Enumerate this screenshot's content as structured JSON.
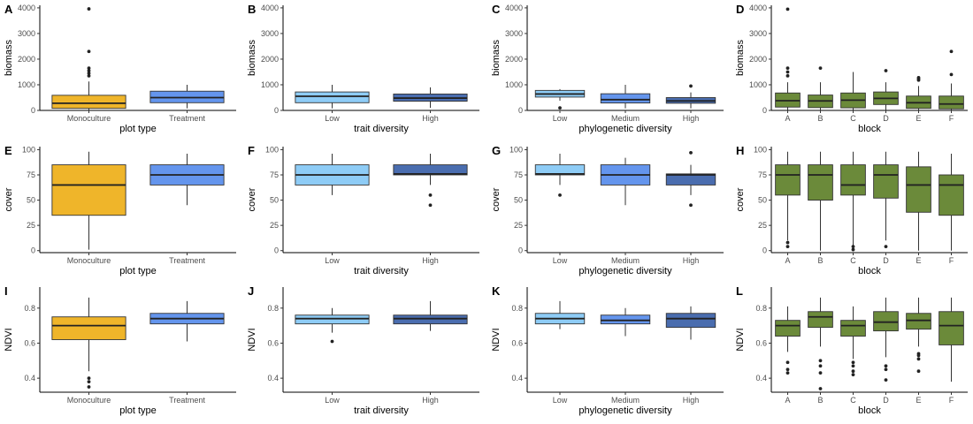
{
  "colors": {
    "monoculture": "#EFB52A",
    "treatment": "#6495ED",
    "low": "#8ECCF6",
    "medium": "#6495ED",
    "high": "#4A6DAF",
    "block": "#6B8A3A",
    "outlier": "#222222",
    "axis": "#000000"
  },
  "chart_data": [
    {
      "panel": "A",
      "type": "box",
      "xlabel": "plot type",
      "ylabel": "biomass",
      "ylim": [
        0,
        4100
      ],
      "yticks": [
        0,
        1000,
        2000,
        3000,
        4000
      ],
      "categories": [
        "Monoculture",
        "Treatment"
      ],
      "color_keys": [
        "monoculture",
        "treatment"
      ],
      "boxes": [
        {
          "lower": 0,
          "q1": 80,
          "median": 280,
          "q3": 590,
          "upper": 1130,
          "outliers": [
            1350,
            1450,
            1550,
            1650,
            2300,
            3960
          ]
        },
        {
          "lower": 80,
          "q1": 300,
          "median": 500,
          "q3": 750,
          "upper": 1000,
          "outliers": []
        }
      ]
    },
    {
      "panel": "B",
      "type": "box",
      "xlabel": "trait diversity",
      "ylabel": "biomass",
      "ylim": [
        0,
        4100
      ],
      "yticks": [
        0,
        1000,
        2000,
        3000,
        4000
      ],
      "categories": [
        "Low",
        "High"
      ],
      "color_keys": [
        "low",
        "high"
      ],
      "boxes": [
        {
          "lower": 80,
          "q1": 300,
          "median": 550,
          "q3": 720,
          "upper": 1000,
          "outliers": []
        },
        {
          "lower": 100,
          "q1": 360,
          "median": 480,
          "q3": 640,
          "upper": 900,
          "outliers": []
        }
      ]
    },
    {
      "panel": "C",
      "type": "box",
      "xlabel": "phylogenetic diversity",
      "ylabel": "biomass",
      "ylim": [
        0,
        4100
      ],
      "yticks": [
        0,
        1000,
        2000,
        3000,
        4000
      ],
      "categories": [
        "Low",
        "Medium",
        "High"
      ],
      "color_keys": [
        "low",
        "medium",
        "high"
      ],
      "boxes": [
        {
          "lower": 380,
          "q1": 520,
          "median": 640,
          "q3": 780,
          "upper": 830,
          "outliers": [
            100
          ]
        },
        {
          "lower": 80,
          "q1": 290,
          "median": 420,
          "q3": 650,
          "upper": 1000,
          "outliers": []
        },
        {
          "lower": 80,
          "q1": 280,
          "median": 370,
          "q3": 500,
          "upper": 700,
          "outliers": [
            950
          ]
        }
      ]
    },
    {
      "panel": "D",
      "type": "box",
      "xlabel": "block",
      "ylabel": "biomass",
      "ylim": [
        0,
        4100
      ],
      "yticks": [
        0,
        1000,
        2000,
        3000,
        4000
      ],
      "categories": [
        "A",
        "B",
        "C",
        "D",
        "E",
        "F"
      ],
      "color_keys": [
        "block",
        "block",
        "block",
        "block",
        "block",
        "block"
      ],
      "boxes": [
        {
          "lower": 0,
          "q1": 130,
          "median": 380,
          "q3": 680,
          "upper": 1100,
          "outliers": [
            1350,
            1500,
            1650,
            3950
          ]
        },
        {
          "lower": 0,
          "q1": 110,
          "median": 370,
          "q3": 600,
          "upper": 1100,
          "outliers": [
            1650
          ]
        },
        {
          "lower": 0,
          "q1": 100,
          "median": 400,
          "q3": 680,
          "upper": 1500,
          "outliers": []
        },
        {
          "lower": 20,
          "q1": 230,
          "median": 470,
          "q3": 720,
          "upper": 1100,
          "outliers": [
            1550
          ]
        },
        {
          "lower": 0,
          "q1": 80,
          "median": 300,
          "q3": 560,
          "upper": 950,
          "outliers": [
            1180,
            1230,
            1280
          ]
        },
        {
          "lower": 0,
          "q1": 60,
          "median": 250,
          "q3": 560,
          "upper": 1050,
          "outliers": [
            1400,
            2300
          ]
        }
      ]
    },
    {
      "panel": "E",
      "type": "box",
      "xlabel": "plot type",
      "ylabel": "cover",
      "ylim": [
        -2,
        103
      ],
      "yticks": [
        0,
        25,
        50,
        75,
        100
      ],
      "categories": [
        "Monoculture",
        "Treatment"
      ],
      "color_keys": [
        "monoculture",
        "treatment"
      ],
      "boxes": [
        {
          "lower": 1,
          "q1": 35,
          "median": 65,
          "q3": 85,
          "upper": 98,
          "outliers": []
        },
        {
          "lower": 45,
          "q1": 65,
          "median": 75,
          "q3": 85,
          "upper": 96,
          "outliers": []
        }
      ]
    },
    {
      "panel": "F",
      "type": "box",
      "xlabel": "trait diversity",
      "ylabel": "cover",
      "ylim": [
        -2,
        103
      ],
      "yticks": [
        0,
        25,
        50,
        75,
        100
      ],
      "categories": [
        "Low",
        "High"
      ],
      "color_keys": [
        "low",
        "high"
      ],
      "boxes": [
        {
          "lower": 55,
          "q1": 65,
          "median": 75,
          "q3": 85,
          "upper": 96,
          "outliers": []
        },
        {
          "lower": 65,
          "q1": 75,
          "median": 76,
          "q3": 85,
          "upper": 96,
          "outliers": [
            45,
            55
          ]
        }
      ]
    },
    {
      "panel": "G",
      "type": "box",
      "xlabel": "phylogenetic diversity",
      "ylabel": "cover",
      "ylim": [
        -2,
        103
      ],
      "yticks": [
        0,
        25,
        50,
        75,
        100
      ],
      "categories": [
        "Low",
        "Medium",
        "High"
      ],
      "color_keys": [
        "low",
        "medium",
        "high"
      ],
      "boxes": [
        {
          "lower": 65,
          "q1": 75,
          "median": 76,
          "q3": 85,
          "upper": 96,
          "outliers": [
            55
          ]
        },
        {
          "lower": 45,
          "q1": 65,
          "median": 75,
          "q3": 85,
          "upper": 92,
          "outliers": []
        },
        {
          "lower": 55,
          "q1": 65,
          "median": 75,
          "q3": 76,
          "upper": 85,
          "outliers": [
            45,
            97
          ]
        }
      ]
    },
    {
      "panel": "H",
      "type": "box",
      "xlabel": "block",
      "ylabel": "cover",
      "ylim": [
        -2,
        103
      ],
      "yticks": [
        0,
        25,
        50,
        75,
        100
      ],
      "categories": [
        "A",
        "B",
        "C",
        "D",
        "E",
        "F"
      ],
      "color_keys": [
        "block",
        "block",
        "block",
        "block",
        "block",
        "block"
      ],
      "boxes": [
        {
          "lower": 10,
          "q1": 55,
          "median": 75,
          "q3": 85,
          "upper": 98,
          "outliers": [
            4,
            8
          ]
        },
        {
          "lower": 0,
          "q1": 50,
          "median": 75,
          "q3": 85,
          "upper": 98,
          "outliers": []
        },
        {
          "lower": 5,
          "q1": 55,
          "median": 65,
          "q3": 85,
          "upper": 98,
          "outliers": [
            1,
            4
          ]
        },
        {
          "lower": 10,
          "q1": 52,
          "median": 75,
          "q3": 85,
          "upper": 98,
          "outliers": [
            4
          ]
        },
        {
          "lower": 0,
          "q1": 38,
          "median": 65,
          "q3": 83,
          "upper": 98,
          "outliers": []
        },
        {
          "lower": 0,
          "q1": 35,
          "median": 65,
          "q3": 75,
          "upper": 96,
          "outliers": []
        }
      ]
    },
    {
      "panel": "I",
      "type": "box",
      "xlabel": "plot type",
      "ylabel": "NDVI",
      "ylim": [
        0.32,
        0.92
      ],
      "yticks": [
        0.4,
        0.6,
        0.8
      ],
      "categories": [
        "Monoculture",
        "Treatment"
      ],
      "color_keys": [
        "monoculture",
        "treatment"
      ],
      "boxes": [
        {
          "lower": 0.44,
          "q1": 0.62,
          "median": 0.7,
          "q3": 0.75,
          "upper": 0.86,
          "outliers": [
            0.35,
            0.38,
            0.4
          ]
        },
        {
          "lower": 0.61,
          "q1": 0.71,
          "median": 0.74,
          "q3": 0.77,
          "upper": 0.84,
          "outliers": []
        }
      ]
    },
    {
      "panel": "J",
      "type": "box",
      "xlabel": "trait diversity",
      "ylabel": "NDVI",
      "ylim": [
        0.32,
        0.92
      ],
      "yticks": [
        0.4,
        0.6,
        0.8
      ],
      "categories": [
        "Low",
        "High"
      ],
      "color_keys": [
        "low",
        "high"
      ],
      "boxes": [
        {
          "lower": 0.66,
          "q1": 0.71,
          "median": 0.74,
          "q3": 0.76,
          "upper": 0.8,
          "outliers": [
            0.61
          ]
        },
        {
          "lower": 0.67,
          "q1": 0.71,
          "median": 0.74,
          "q3": 0.76,
          "upper": 0.84,
          "outliers": []
        }
      ]
    },
    {
      "panel": "K",
      "type": "box",
      "xlabel": "phylogenetic diversity",
      "ylabel": "NDVI",
      "ylim": [
        0.32,
        0.92
      ],
      "yticks": [
        0.4,
        0.6,
        0.8
      ],
      "categories": [
        "Low",
        "Medium",
        "High"
      ],
      "color_keys": [
        "low",
        "medium",
        "high"
      ],
      "boxes": [
        {
          "lower": 0.68,
          "q1": 0.71,
          "median": 0.74,
          "q3": 0.77,
          "upper": 0.84,
          "outliers": []
        },
        {
          "lower": 0.64,
          "q1": 0.71,
          "median": 0.73,
          "q3": 0.76,
          "upper": 0.8,
          "outliers": []
        },
        {
          "lower": 0.62,
          "q1": 0.69,
          "median": 0.74,
          "q3": 0.77,
          "upper": 0.81,
          "outliers": []
        }
      ]
    },
    {
      "panel": "L",
      "type": "box",
      "xlabel": "block",
      "ylabel": "NDVI",
      "ylim": [
        0.32,
        0.92
      ],
      "yticks": [
        0.4,
        0.6,
        0.8
      ],
      "categories": [
        "A",
        "B",
        "C",
        "D",
        "E",
        "F"
      ],
      "color_keys": [
        "block",
        "block",
        "block",
        "block",
        "block",
        "block"
      ],
      "boxes": [
        {
          "lower": 0.55,
          "q1": 0.64,
          "median": 0.7,
          "q3": 0.73,
          "upper": 0.81,
          "outliers": [
            0.43,
            0.45,
            0.49
          ]
        },
        {
          "lower": 0.58,
          "q1": 0.69,
          "median": 0.75,
          "q3": 0.78,
          "upper": 0.86,
          "outliers": [
            0.34,
            0.43,
            0.47,
            0.5
          ]
        },
        {
          "lower": 0.51,
          "q1": 0.64,
          "median": 0.7,
          "q3": 0.73,
          "upper": 0.81,
          "outliers": [
            0.42,
            0.44,
            0.47,
            0.49
          ]
        },
        {
          "lower": 0.52,
          "q1": 0.67,
          "median": 0.72,
          "q3": 0.78,
          "upper": 0.86,
          "outliers": [
            0.39,
            0.45,
            0.47
          ]
        },
        {
          "lower": 0.58,
          "q1": 0.68,
          "median": 0.73,
          "q3": 0.77,
          "upper": 0.86,
          "outliers": [
            0.44,
            0.51,
            0.53,
            0.54
          ]
        },
        {
          "lower": 0.38,
          "q1": 0.59,
          "median": 0.7,
          "q3": 0.78,
          "upper": 0.86,
          "outliers": []
        }
      ]
    }
  ]
}
